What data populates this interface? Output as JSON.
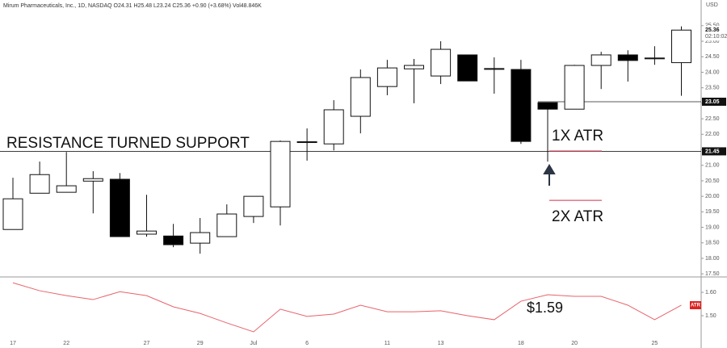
{
  "chart_data": [
    {
      "type": "candlestick",
      "title": "Mirum Pharmaceuticals, Inc., 1D, NASDAQ  O24.31  H25.48  L23.24  C25.36  +0.90 (+3.68%)  Vol48.846K",
      "currency": "USD",
      "categories": [
        "17",
        null,
        "22",
        null,
        null,
        "27",
        null,
        "29",
        null,
        "Jul",
        null,
        "6",
        null,
        null,
        "11",
        null,
        "13",
        null,
        null,
        "18",
        null,
        "20",
        null,
        null,
        "25",
        null
      ],
      "open": [
        18.93,
        20.1,
        20.13,
        20.49,
        20.55,
        18.78,
        18.72,
        18.49,
        18.7,
        19.35,
        19.66,
        21.74,
        21.69,
        22.58,
        23.54,
        24.11,
        23.88,
        24.56,
        24.12,
        24.09,
        23.02,
        22.81,
        24.22,
        24.56,
        24.45,
        24.31
      ],
      "high": [
        20.6,
        21.12,
        21.43,
        20.81,
        20.75,
        20.05,
        19.11,
        19.3,
        19.74,
        20.0,
        21.8,
        22.19,
        23.1,
        24.09,
        24.4,
        24.43,
        25.0,
        24.56,
        24.48,
        24.4,
        23.02,
        24.24,
        24.66,
        24.71,
        24.84,
        25.48
      ],
      "low": [
        18.93,
        20.1,
        20.13,
        19.45,
        18.7,
        18.7,
        18.36,
        18.15,
        18.7,
        19.14,
        19.06,
        21.15,
        21.48,
        22.03,
        23.26,
        23.0,
        23.62,
        23.72,
        23.31,
        21.69,
        21.12,
        22.81,
        23.46,
        23.7,
        24.24,
        23.24
      ],
      "close": [
        19.92,
        20.7,
        20.34,
        20.57,
        18.7,
        18.88,
        18.44,
        18.83,
        19.43,
        20.0,
        21.77,
        21.76,
        22.79,
        23.83,
        24.14,
        24.22,
        24.74,
        23.72,
        24.11,
        21.77,
        22.81,
        24.22,
        24.56,
        24.38,
        24.46,
        25.36
      ],
      "up_color": "#ffffff",
      "down_color": "#000000",
      "last_price": 25.36,
      "last_time": "02:10:02",
      "levels": [
        23.05,
        21.45
      ],
      "annotation": "RESISTANCE TURNED SUPPORT",
      "atr_levels": [
        {
          "label": "1X ATR",
          "value": 21.46
        },
        {
          "label": "2X ATR",
          "value": 19.87
        }
      ],
      "atr_color": "#d0304a",
      "ylim": [
        17.4,
        26.33
      ],
      "yticks": [
        {
          "value": 17.5,
          "label": "17.50"
        },
        {
          "value": 18,
          "label": "18.00"
        },
        {
          "value": 18.5,
          "label": "18.50"
        },
        {
          "value": 19,
          "label": "19.00"
        },
        {
          "value": 19.5,
          "label": "19.50"
        },
        {
          "value": 20,
          "label": "20.00"
        },
        {
          "value": 20.5,
          "label": "20.50"
        },
        {
          "value": 21,
          "label": "21.00"
        },
        {
          "value": 21.5,
          "label": "21.50"
        },
        {
          "value": 22,
          "label": "22.00"
        },
        {
          "value": 22.5,
          "label": "22.50"
        },
        {
          "value": 23,
          "label": "23.00"
        },
        {
          "value": 23.5,
          "label": "23.50"
        },
        {
          "value": 24,
          "label": "24.00"
        },
        {
          "value": 24.5,
          "label": "24.50"
        },
        {
          "value": 25,
          "label": "25.00"
        },
        {
          "value": 25.5,
          "label": "25.50"
        }
      ]
    },
    {
      "type": "line",
      "name": "ATR",
      "color": "#e8636b",
      "values": [
        1.641,
        1.607,
        1.586,
        1.569,
        1.603,
        1.586,
        1.538,
        1.51,
        1.469,
        1.431,
        1.528,
        1.497,
        1.507,
        1.545,
        1.517,
        1.517,
        1.521,
        1.5,
        1.483,
        1.562,
        1.59,
        1.583,
        1.583,
        1.545,
        1.483,
        1.545
      ],
      "annotation": "$1.59",
      "ylim": [
        1.417,
        1.666
      ],
      "yticks": [
        {
          "value": 1.6,
          "label": "1.60"
        },
        {
          "value": 1.5,
          "label": "1.50"
        }
      ]
    }
  ]
}
